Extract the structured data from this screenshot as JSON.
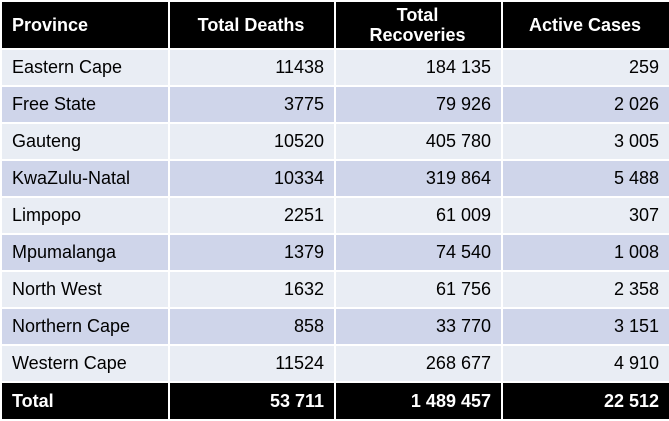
{
  "table": {
    "headers": [
      "Province",
      "Total Deaths",
      "Total Recoveries",
      "Active Cases"
    ],
    "rows": [
      [
        "Eastern Cape",
        "11438",
        "184 135",
        "259"
      ],
      [
        "Free State",
        "3775",
        "79 926",
        "2 026"
      ],
      [
        "Gauteng",
        "10520",
        "405 780",
        "3 005"
      ],
      [
        "KwaZulu-Natal",
        "10334",
        "319 864",
        "5 488"
      ],
      [
        "Limpopo",
        "2251",
        "61 009",
        "307"
      ],
      [
        "Mpumalanga",
        "1379",
        "74 540",
        "1 008"
      ],
      [
        "North West",
        "1632",
        "61 756",
        "2 358"
      ],
      [
        "Northern Cape",
        "858",
        "33 770",
        "3 151"
      ],
      [
        "Western Cape",
        "11524",
        "268 677",
        "4 910"
      ]
    ],
    "total": [
      "Total",
      "53 711",
      "1 489 457",
      "22 512"
    ]
  },
  "colors": {
    "header_bg": "#000000",
    "header_text": "#ffffff",
    "row_light": "#e9edf4",
    "row_dark": "#cfd5ea"
  }
}
